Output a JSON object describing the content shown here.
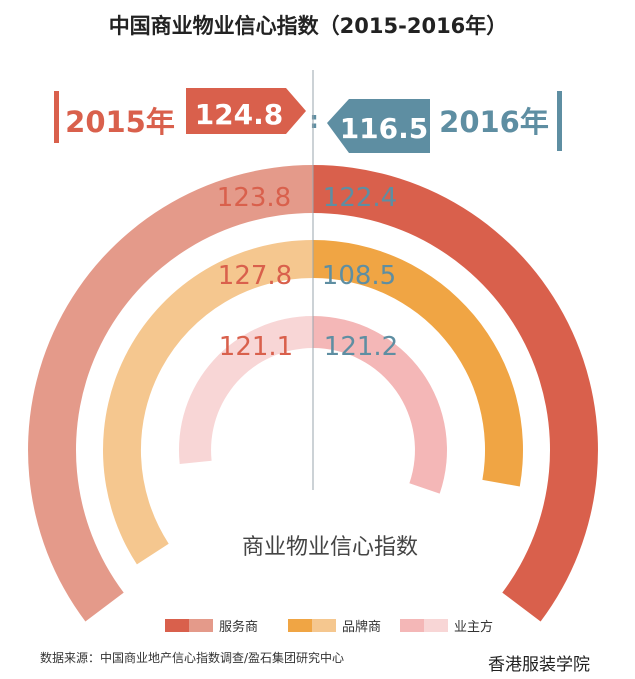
{
  "title": "中国商业物业信心指数（2015-2016年）",
  "header": {
    "left_year": "2015年",
    "left_value": "124.8",
    "right_value": "116.5",
    "right_year": "2016年",
    "separator": ":"
  },
  "colors": {
    "red": "#d9604c",
    "blue": "#5e8ea2",
    "gray_line": "#9aa6ad",
    "service_2015": "#e49a8a",
    "service_2016": "#d9604c",
    "brand_2015": "#f5c78f",
    "brand_2016": "#f0a544",
    "owner_2015": "#f8d6d6",
    "owner_2016": "#f4b7b7",
    "label_2015": "#d9604c",
    "label_2016": "#5e8ea2"
  },
  "chart_data": {
    "type": "semi-donut",
    "title": "中国商业物业信心指数（2015-2016年）",
    "center_label": "商业物业信心指数",
    "periods": [
      "2015年",
      "2016年"
    ],
    "overall": {
      "2015年": 124.8,
      "2016年": 116.5
    },
    "series": [
      {
        "name": "服务商",
        "values": [
          123.8,
          122.4
        ]
      },
      {
        "name": "品牌商",
        "values": [
          127.8,
          108.5
        ]
      },
      {
        "name": "业主方",
        "values": [
          121.1,
          121.2
        ]
      }
    ],
    "legend": [
      "服务商",
      "品牌商",
      "业主方"
    ],
    "legend_position": "bottom"
  },
  "labels": {
    "service": [
      "123.8",
      "122.4"
    ],
    "brand": [
      "127.8",
      "108.5"
    ],
    "owner": [
      "121.1",
      "121.2"
    ]
  },
  "footer": {
    "source": "数据来源：中国商业地产信心指数调查/盈石集团研究中心",
    "watermark": "香港服装学院"
  }
}
